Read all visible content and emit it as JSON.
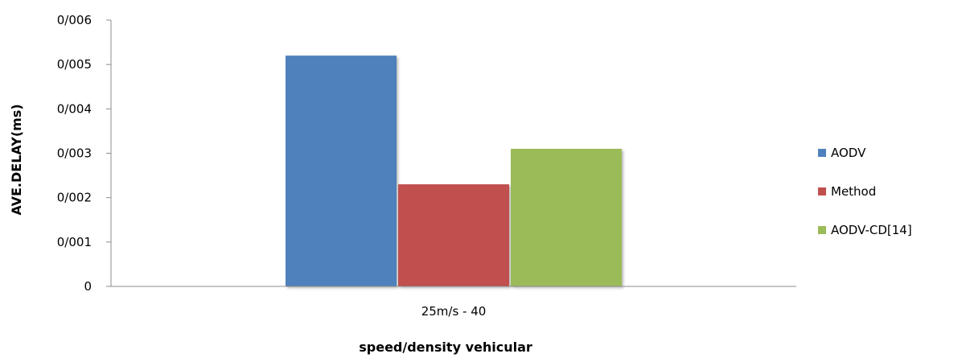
{
  "chart_data": {
    "type": "bar",
    "title": "",
    "xlabel": "speed/density vehicular",
    "ylabel": "AVE.DELAY(ms)",
    "categories": [
      "25m/s - 40"
    ],
    "series": [
      {
        "name": "AODV",
        "values": [
          0.0052
        ],
        "color": "#4f81bd"
      },
      {
        "name": "Method",
        "values": [
          0.0023
        ],
        "color": "#c0504d"
      },
      {
        "name": "AODV-CD[14]",
        "values": [
          0.0031
        ],
        "color": "#9bbb59"
      }
    ],
    "ylim": [
      0,
      0.006
    ],
    "yticks": [
      0,
      0.001,
      0.002,
      0.003,
      0.004,
      0.005,
      0.006
    ],
    "ytick_labels": [
      "0",
      "0/001",
      "0/002",
      "0/003",
      "0/004",
      "0/005",
      "0/006"
    ],
    "grid": false,
    "legend_position": "right"
  }
}
